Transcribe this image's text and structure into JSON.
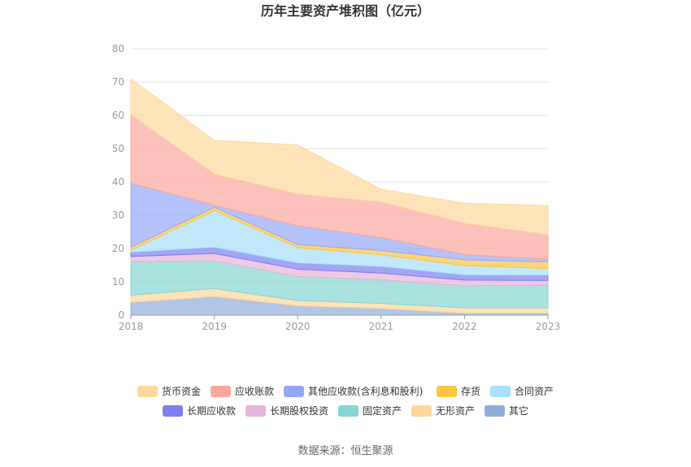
{
  "chart_data": {
    "type": "area",
    "stacked": true,
    "title": "历年主要资产堆积图（亿元）",
    "x": [
      "2018",
      "2019",
      "2020",
      "2021",
      "2022",
      "2023"
    ],
    "ylim": [
      0,
      80
    ],
    "yticks": [
      0,
      10,
      20,
      30,
      40,
      50,
      60,
      70,
      80
    ],
    "grid": true,
    "legend_position": "bottom",
    "series": [
      {
        "name": "其它",
        "color": "#8eaed8",
        "values": [
          3.8,
          5.6,
          2.8,
          2.0,
          0.6,
          0.6
        ]
      },
      {
        "name": "无形资产",
        "color": "#ffd79b",
        "values": [
          2.2,
          2.4,
          1.6,
          1.5,
          1.6,
          1.6
        ]
      },
      {
        "name": "固定资产",
        "color": "#86d5d2",
        "values": [
          10.0,
          8.3,
          7.2,
          7.1,
          6.6,
          6.8
        ]
      },
      {
        "name": "长期股权投资",
        "color": "#e7b4d8",
        "values": [
          1.6,
          2.2,
          2.2,
          2.0,
          1.7,
          1.4
        ]
      },
      {
        "name": "长期应收款",
        "color": "#7d7ff0",
        "values": [
          1.3,
          1.9,
          1.9,
          2.0,
          1.6,
          1.6
        ]
      },
      {
        "name": "合同资产",
        "color": "#a6e0f9",
        "values": [
          0.6,
          11.0,
          4.6,
          3.5,
          2.8,
          2.0
        ]
      },
      {
        "name": "存货",
        "color": "#ffc53d",
        "values": [
          0.9,
          1.0,
          0.9,
          1.3,
          1.7,
          2.0
        ]
      },
      {
        "name": "其他应收款(含利息和股利)",
        "color": "#94a8fa",
        "values": [
          19.2,
          0.6,
          5.6,
          3.9,
          1.6,
          0.8
        ]
      },
      {
        "name": "应收账款",
        "color": "#fba69e",
        "values": [
          20.6,
          9.4,
          9.6,
          10.7,
          9.4,
          7.4
        ]
      },
      {
        "name": "货币资金",
        "color": "#ffd99c",
        "values": [
          10.8,
          10.1,
          14.7,
          3.8,
          6.0,
          8.7
        ]
      }
    ],
    "legend_order": [
      "货币资金",
      "应收账款",
      "其他应收款(含利息和股利)",
      "存货",
      "合同资产",
      "长期应收款",
      "长期股权投资",
      "固定资产",
      "无形资产",
      "其它"
    ]
  },
  "source": "数据来源：恒生聚源"
}
